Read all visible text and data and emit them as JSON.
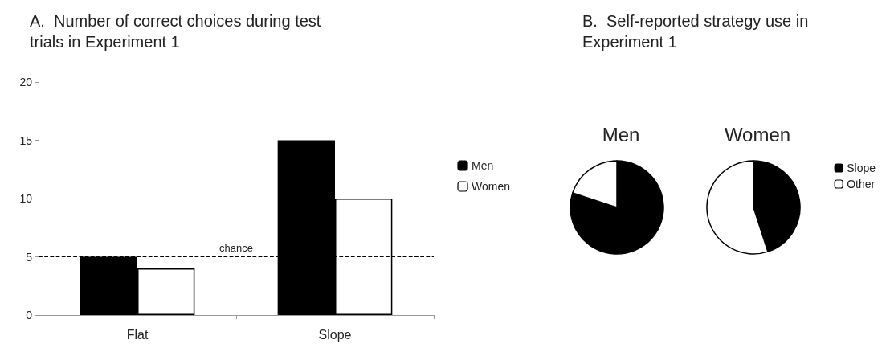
{
  "chart_data": [
    {
      "type": "bar",
      "title": "A.  Number of correct choices during test trials in Experiment 1",
      "categories": [
        "Flat",
        "Slope"
      ],
      "series": [
        {
          "name": "Men",
          "color": "#000000",
          "values": [
            5,
            15
          ]
        },
        {
          "name": "Women",
          "color": "#ffffff",
          "values": [
            4,
            10
          ]
        }
      ],
      "ylim": [
        0,
        20
      ],
      "yticks": [
        0,
        5,
        10,
        15,
        20
      ],
      "grid": false,
      "legend": "right",
      "ref_lines": [
        {
          "axis": "y",
          "value": 5,
          "label": "chance",
          "line_style": "dashed",
          "color": "#000000"
        }
      ]
    },
    {
      "type": "pie",
      "title": "B.  Self-reported strategy use in Experiment 1",
      "categories": [
        "Slope",
        "Other"
      ],
      "colors": [
        "#000000",
        "#ffffff"
      ],
      "legend": "right",
      "series": [
        {
          "name": "Men",
          "values": [
            80,
            20
          ]
        },
        {
          "name": "Women",
          "values": [
            45,
            55
          ]
        }
      ]
    }
  ]
}
